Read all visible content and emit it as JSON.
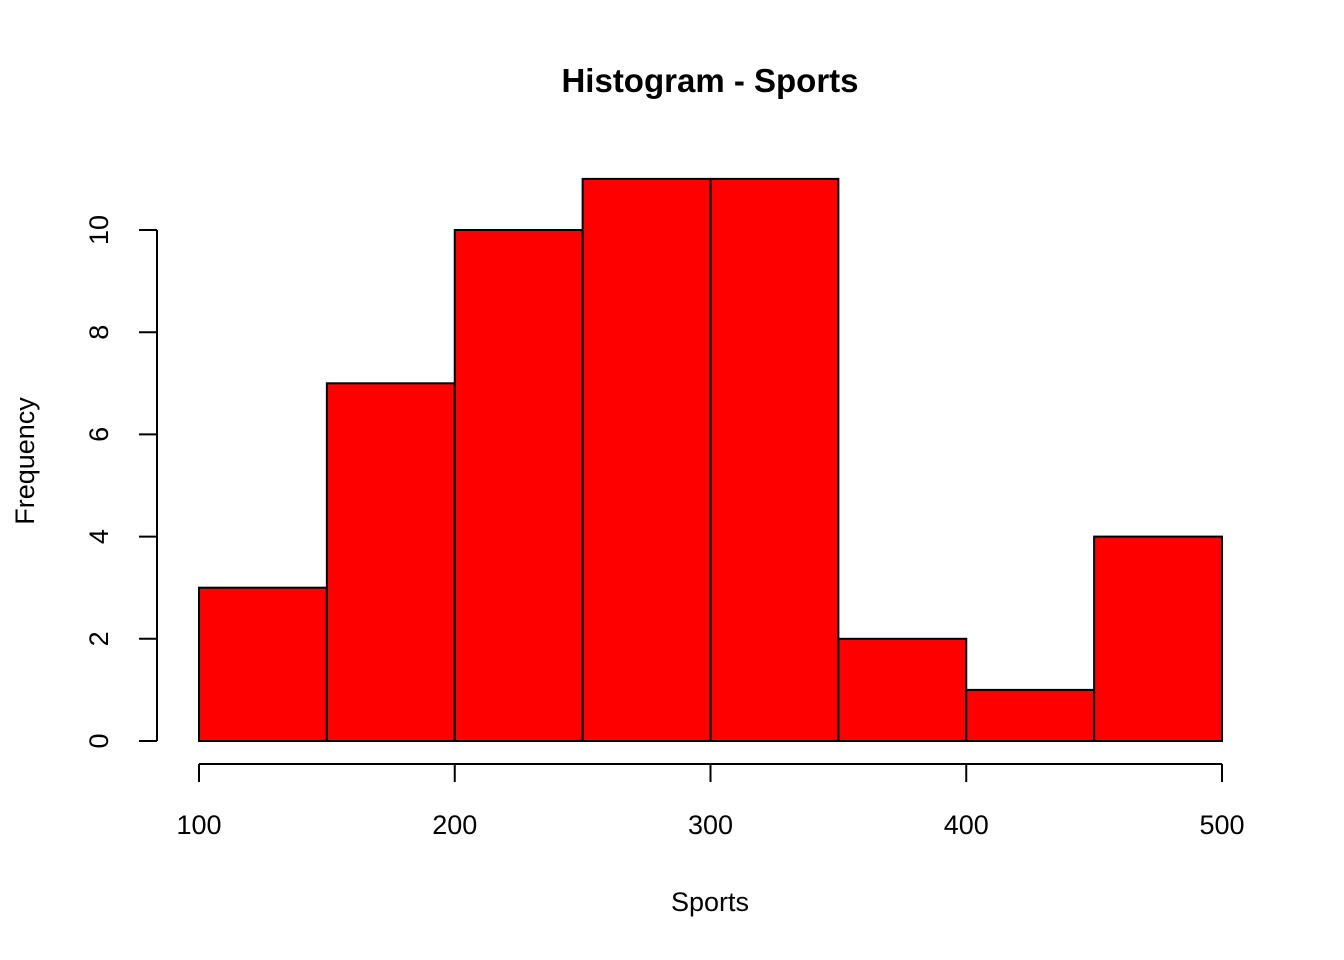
{
  "chart_data": {
    "type": "bar",
    "subtype": "histogram",
    "title": "Histogram - Sports",
    "xlabel": "Sports",
    "ylabel": "Frequency",
    "bar_color": "#FF0000",
    "bins": [
      {
        "from": 100,
        "to": 150,
        "count": 3
      },
      {
        "from": 150,
        "to": 200,
        "count": 7
      },
      {
        "from": 200,
        "to": 250,
        "count": 10
      },
      {
        "from": 250,
        "to": 300,
        "count": 11
      },
      {
        "from": 300,
        "to": 350,
        "count": 11
      },
      {
        "from": 350,
        "to": 400,
        "count": 2
      },
      {
        "from": 400,
        "to": 450,
        "count": 1
      },
      {
        "from": 450,
        "to": 500,
        "count": 4
      }
    ],
    "xlim": [
      100,
      500
    ],
    "ylim": [
      0,
      11
    ],
    "x_ticks": [
      "100",
      "200",
      "300",
      "400",
      "500"
    ],
    "y_ticks": [
      "0",
      "2",
      "4",
      "6",
      "8",
      "10"
    ],
    "grid": false,
    "legend": false
  }
}
